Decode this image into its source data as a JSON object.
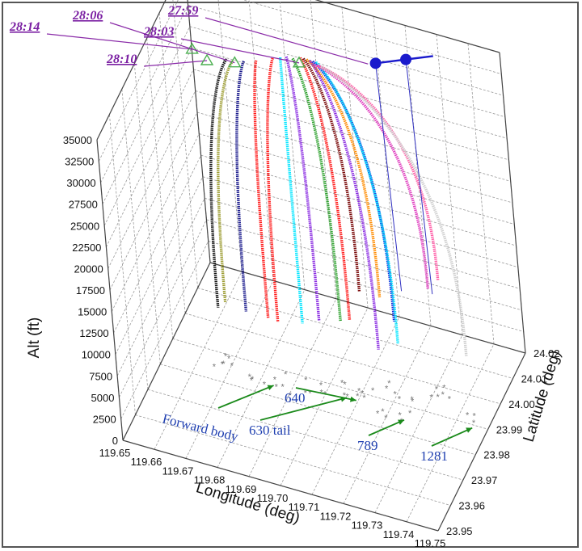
{
  "chart_data": {
    "type": "scatter",
    "zlabel": "Alt (ft)",
    "xlabel": "Longitude (deg)",
    "ylabel": "Latitude (deg)",
    "z_ticks": [
      "0",
      "2500",
      "5000",
      "7500",
      "10000",
      "12500",
      "15000",
      "17500",
      "20000",
      "22500",
      "25000",
      "27500",
      "30000",
      "32500",
      "35000"
    ],
    "x_ticks": [
      "119.65",
      "119.66",
      "119.67",
      "119.68",
      "119.69",
      "119.70",
      "119.71",
      "119.72",
      "119.73",
      "119.74",
      "119.75"
    ],
    "y_ticks": [
      "23.95",
      "23.96",
      "23.97",
      "23.98",
      "23.99",
      "24.00",
      "24.01",
      "24.02"
    ],
    "xlim": [
      119.65,
      119.75
    ],
    "ylim": [
      23.95,
      24.02
    ],
    "zlim": [
      0,
      35000
    ],
    "grid": true,
    "time_annotations": [
      {
        "label": "28:14",
        "x": 119.662,
        "y": 23.995,
        "z": 33500
      },
      {
        "label": "28:06",
        "x": 119.675,
        "y": 23.996,
        "z": 33000
      },
      {
        "label": "28:03",
        "x": 119.695,
        "y": 23.998,
        "z": 34500
      },
      {
        "label": "28:10",
        "x": 119.667,
        "y": 23.994,
        "z": 33000
      },
      {
        "label": "27:59",
        "x": 119.715,
        "y": 24.003,
        "z": 35000
      }
    ],
    "piece_labels": [
      {
        "label": "Forward body",
        "x": 119.681,
        "y": 23.985,
        "z": 0
      },
      {
        "label": "630 tail",
        "x": 119.696,
        "y": 23.981,
        "z": 0
      },
      {
        "label": "640",
        "x": 119.702,
        "y": 23.987,
        "z": 0
      },
      {
        "label": "789",
        "x": 119.719,
        "y": 23.979,
        "z": 0
      },
      {
        "label": "1281",
        "x": 119.736,
        "y": 23.983,
        "z": 0
      }
    ],
    "breakup_track": [
      {
        "x": 119.717,
        "y": 24.004,
        "z": 35000
      },
      {
        "x": 119.726,
        "y": 24.006,
        "z": 35800
      }
    ],
    "series": [
      {
        "color": "#111111",
        "start": [
          119.673,
          23.995,
          33500
        ],
        "end": [
          119.668,
          23.985,
          7000
        ]
      },
      {
        "color": "#9b9b2f",
        "start": [
          119.675,
          23.995,
          33500
        ],
        "end": [
          119.67,
          23.986,
          7500
        ]
      },
      {
        "color": "#1a1a8c",
        "start": [
          119.678,
          23.996,
          33500
        ],
        "end": [
          119.677,
          23.985,
          7500
        ]
      },
      {
        "color": "#ff1a1a",
        "start": [
          119.682,
          23.996,
          34000
        ],
        "end": [
          119.684,
          23.985,
          7500
        ]
      },
      {
        "color": "#ff1a1a",
        "start": [
          119.687,
          23.997,
          34500
        ],
        "end": [
          119.688,
          23.983,
          8000
        ]
      },
      {
        "color": "#00e5ff",
        "start": [
          119.689,
          23.998,
          34500
        ],
        "end": [
          119.695,
          23.985,
          8000
        ]
      },
      {
        "color": "#8a2be2",
        "start": [
          119.691,
          23.998,
          34800
        ],
        "end": [
          119.7,
          23.986,
          8500
        ]
      },
      {
        "color": "#2ca02c",
        "start": [
          119.693,
          23.998,
          34800
        ],
        "end": [
          119.706,
          23.988,
          8500
        ]
      },
      {
        "color": "#ff1a1a",
        "start": [
          119.695,
          23.999,
          34800
        ],
        "end": [
          119.709,
          23.988,
          9000
        ]
      },
      {
        "color": "#7a0a0a",
        "start": [
          119.696,
          23.999,
          34800
        ],
        "end": [
          119.712,
          23.99,
          12000
        ]
      },
      {
        "color": "#ff8c00",
        "start": [
          119.697,
          23.999,
          34800
        ],
        "end": [
          119.717,
          23.993,
          11000
        ]
      },
      {
        "color": "#8a2be2",
        "start": [
          119.698,
          23.999,
          34800
        ],
        "end": [
          119.719,
          23.985,
          7500
        ]
      },
      {
        "color": "#1f1fd6",
        "start": [
          119.699,
          23.999,
          34800
        ],
        "end": [
          119.723,
          23.989,
          10000
        ]
      },
      {
        "color": "#00e5ff",
        "start": [
          119.7,
          23.999,
          34800
        ],
        "end": [
          119.725,
          23.986,
          8500
        ]
      },
      {
        "color": "#e040c0",
        "start": [
          119.7,
          23.998,
          34800
        ],
        "end": [
          119.732,
          23.995,
          13000
        ]
      },
      {
        "color": "#ff5fa8",
        "start": [
          119.701,
          23.998,
          34800
        ],
        "end": [
          119.735,
          23.996,
          14000
        ]
      },
      {
        "color": "#d0d0d0",
        "start": [
          119.702,
          23.998,
          34800
        ],
        "end": [
          119.745,
          23.99,
          8000
        ]
      }
    ]
  }
}
